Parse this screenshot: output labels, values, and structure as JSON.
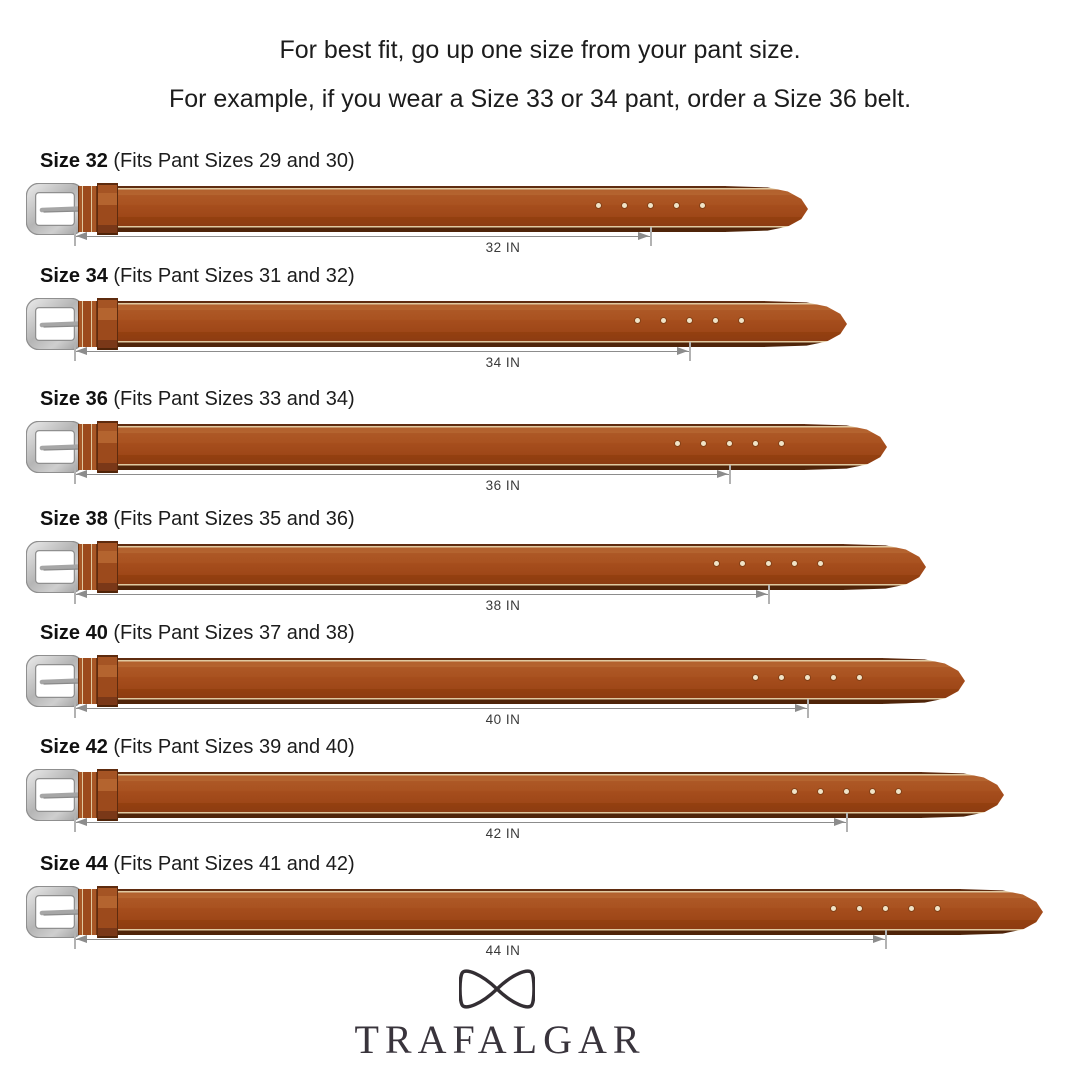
{
  "header": {
    "line1": "For best fit, go up one size from your pant size.",
    "line2": "For example, if you wear a Size 33 or 34 pant, order a Size 36 belt."
  },
  "belts": [
    {
      "size_label": "Size 32",
      "fits_label": "(Fits Pant Sizes 29 and 30)",
      "length_in": 32,
      "measure_label": "32 IN"
    },
    {
      "size_label": "Size 34",
      "fits_label": "(Fits Pant Sizes 31 and 32)",
      "length_in": 34,
      "measure_label": "34 IN"
    },
    {
      "size_label": "Size 36",
      "fits_label": "(Fits Pant Sizes 33 and 34)",
      "length_in": 36,
      "measure_label": "36 IN"
    },
    {
      "size_label": "Size 38",
      "fits_label": "(Fits Pant Sizes 35 and 36)",
      "length_in": 38,
      "measure_label": "38 IN"
    },
    {
      "size_label": "Size 40",
      "fits_label": "(Fits Pant Sizes 37 and 38)",
      "length_in": 40,
      "measure_label": "40 IN"
    },
    {
      "size_label": "Size 42",
      "fits_label": "(Fits Pant Sizes 39 and 40)",
      "length_in": 42,
      "measure_label": "42 IN"
    },
    {
      "size_label": "Size 44",
      "fits_label": "(Fits Pant Sizes 41 and 42)",
      "length_in": 44,
      "measure_label": "44 IN"
    }
  ],
  "footer": {
    "brand": "TRAFALGAR",
    "logo_icon": "bow-tie-icon"
  },
  "colors": {
    "leather_main": "#a64e1d",
    "leather_edge": "#5f2c10",
    "stitch": "#e0c9a0",
    "buckle_silver": "#c4c4c4",
    "arrow_gray": "#8c8c8c",
    "text": "#1c1c1c",
    "brand_text": "#39343c"
  }
}
